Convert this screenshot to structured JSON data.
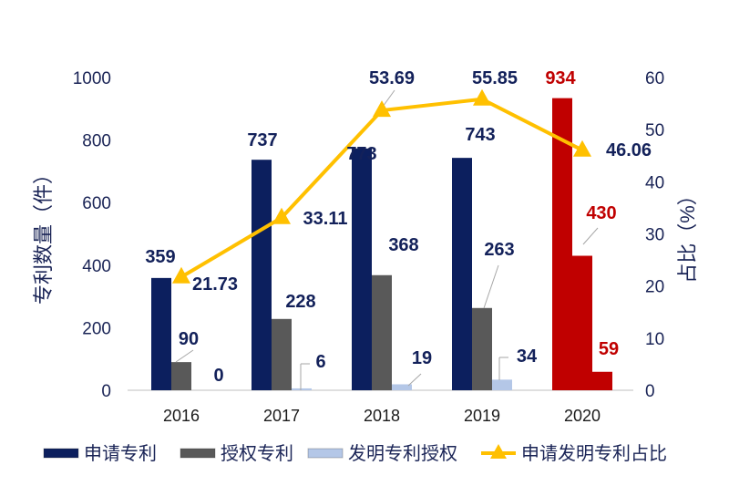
{
  "chart_data": {
    "type": "bar+line",
    "categories": [
      "2016",
      "2017",
      "2018",
      "2019",
      "2020"
    ],
    "series": [
      {
        "name": "申请专利",
        "type": "bar",
        "axis": "left",
        "values": [
          359,
          737,
          773,
          743,
          934
        ],
        "color": "#0c1f5e"
      },
      {
        "name": "授权专利",
        "type": "bar",
        "axis": "left",
        "values": [
          90,
          228,
          368,
          263,
          430
        ],
        "color": "#595959"
      },
      {
        "name": "发明专利授权",
        "type": "bar",
        "axis": "left",
        "values": [
          0,
          6,
          19,
          34,
          59
        ],
        "color": "#b4c7e7"
      },
      {
        "name": "申请发明专利占比",
        "type": "line",
        "axis": "right",
        "values": [
          21.73,
          33.11,
          53.69,
          55.85,
          46.06
        ],
        "color": "#ffc000",
        "marker": "triangle"
      }
    ],
    "highlight_category": "2020",
    "highlight_color": "#c00000",
    "ylabel": "专利数量（件）",
    "y2label": "占比（%）",
    "ylim": [
      0,
      1000
    ],
    "y2lim": [
      0,
      60
    ],
    "yticks": [
      "0",
      "200",
      "400",
      "600",
      "800",
      "1000"
    ],
    "y2ticks": [
      "0",
      "10",
      "20",
      "30",
      "40",
      "50",
      "60"
    ],
    "data_labels": {
      "bar0": [
        "359",
        "737",
        "773",
        "743",
        "934"
      ],
      "bar1": [
        "90",
        "228",
        "368",
        "263",
        "430"
      ],
      "bar2": [
        "0",
        "6",
        "19",
        "34",
        "59"
      ],
      "line": [
        "21.73",
        "33.11",
        "53.69",
        "55.85",
        "46.06"
      ]
    },
    "grid": false,
    "legend_position": "bottom"
  }
}
